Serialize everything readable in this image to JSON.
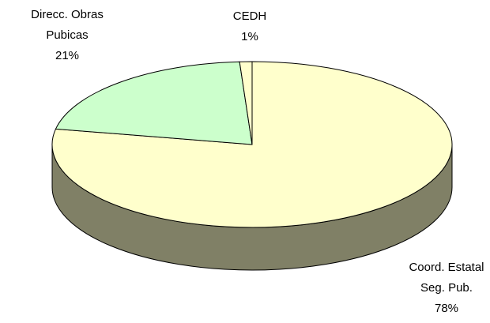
{
  "chart_data": {
    "type": "pie3d",
    "categories": [
      "Coord. Estatal Seg. Pub.",
      "Direcc. Obras Pubicas",
      "CEDH"
    ],
    "values": [
      78,
      21,
      1
    ],
    "value_labels": [
      "78%",
      "21%",
      "1%"
    ],
    "colors": [
      "#ffffcc",
      "#ccffcc",
      "#ffffcc"
    ]
  }
}
